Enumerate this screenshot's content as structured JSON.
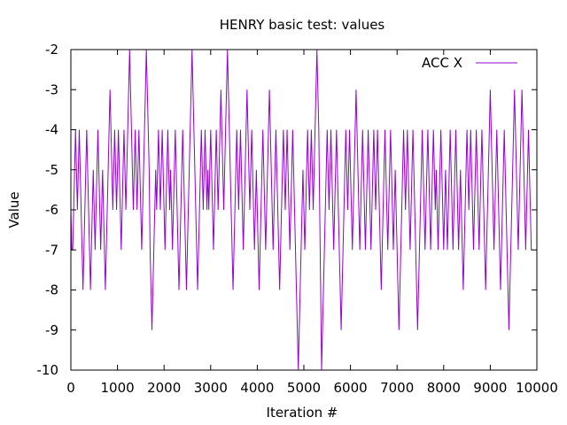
{
  "chart_data": {
    "type": "line",
    "title": "HENRY basic test: values",
    "xlabel": "Iteration #",
    "ylabel": "Value",
    "xlim": [
      0,
      10000
    ],
    "ylim": [
      -10,
      -2
    ],
    "xticks": [
      0,
      1000,
      2000,
      3000,
      4000,
      5000,
      6000,
      7000,
      8000,
      9000,
      10000
    ],
    "yticks": [
      -10,
      -9,
      -8,
      -7,
      -6,
      -5,
      -4,
      -3,
      -2
    ],
    "grid": false,
    "legend_position": "top-right",
    "series": [
      {
        "name": "ACC X",
        "color": "#9400d3",
        "x_start": 0,
        "x_step": 20,
        "values": [
          -6,
          -7,
          -7,
          -6,
          -5,
          -4,
          -5,
          -6,
          -5,
          -4,
          -5,
          -6,
          -7,
          -8,
          -7,
          -6,
          -5,
          -4,
          -5,
          -6,
          -7,
          -8,
          -7,
          -6,
          -5,
          -6,
          -7,
          -6,
          -5,
          -4,
          -5,
          -6,
          -7,
          -6,
          -5,
          -6,
          -7,
          -8,
          -7,
          -6,
          -5,
          -4,
          -3,
          -4,
          -5,
          -6,
          -5,
          -4,
          -5,
          -6,
          -5,
          -4,
          -5,
          -6,
          -7,
          -6,
          -5,
          -4,
          -5,
          -6,
          -5,
          -4,
          -3,
          -2,
          -3,
          -4,
          -5,
          -6,
          -5,
          -4,
          -5,
          -6,
          -5,
          -4,
          -5,
          -6,
          -7,
          -6,
          -5,
          -4,
          -3,
          -2,
          -3,
          -4,
          -5,
          -7,
          -8,
          -9,
          -8,
          -7,
          -6,
          -5,
          -6,
          -5,
          -4,
          -5,
          -6,
          -5,
          -4,
          -5,
          -6,
          -7,
          -6,
          -5,
          -4,
          -5,
          -6,
          -5,
          -6,
          -7,
          -6,
          -5,
          -4,
          -5,
          -6,
          -7,
          -8,
          -7,
          -6,
          -5,
          -4,
          -5,
          -6,
          -7,
          -8,
          -7,
          -6,
          -5,
          -4,
          -3,
          -2,
          -3,
          -4,
          -5,
          -6,
          -7,
          -8,
          -7,
          -6,
          -5,
          -4,
          -5,
          -6,
          -5,
          -4,
          -5,
          -6,
          -5,
          -6,
          -5,
          -4,
          -5,
          -6,
          -7,
          -6,
          -5,
          -4,
          -5,
          -6,
          -5,
          -4,
          -3,
          -4,
          -5,
          -6,
          -5,
          -4,
          -3,
          -2,
          -3,
          -4,
          -5,
          -6,
          -7,
          -8,
          -7,
          -6,
          -5,
          -4,
          -5,
          -6,
          -5,
          -4,
          -5,
          -6,
          -7,
          -6,
          -5,
          -4,
          -3,
          -4,
          -5,
          -6,
          -5,
          -4,
          -5,
          -6,
          -7,
          -6,
          -5,
          -6,
          -7,
          -8,
          -7,
          -6,
          -5,
          -4,
          -5,
          -6,
          -7,
          -6,
          -5,
          -4,
          -3,
          -4,
          -5,
          -6,
          -7,
          -6,
          -5,
          -4,
          -5,
          -6,
          -7,
          -8,
          -7,
          -6,
          -5,
          -4,
          -5,
          -6,
          -5,
          -4,
          -5,
          -6,
          -7,
          -6,
          -5,
          -4,
          -5,
          -6,
          -7,
          -8,
          -9,
          -10,
          -9,
          -8,
          -7,
          -6,
          -5,
          -6,
          -7,
          -6,
          -5,
          -4,
          -5,
          -6,
          -5,
          -4,
          -5,
          -6,
          -5,
          -4,
          -3,
          -2,
          -3,
          -4,
          -6,
          -8,
          -10,
          -9,
          -8,
          -7,
          -6,
          -5,
          -4,
          -5,
          -6,
          -5,
          -4,
          -5,
          -6,
          -7,
          -6,
          -5,
          -4,
          -5,
          -6,
          -7,
          -8,
          -9,
          -8,
          -7,
          -6,
          -5,
          -4,
          -5,
          -6,
          -5,
          -4,
          -5,
          -6,
          -7,
          -6,
          -5,
          -4,
          -3,
          -4,
          -5,
          -6,
          -7,
          -6,
          -5,
          -4,
          -5,
          -6,
          -7,
          -6,
          -5,
          -4,
          -5,
          -6,
          -7,
          -6,
          -5,
          -4,
          -5,
          -6,
          -5,
          -4,
          -5,
          -6,
          -7,
          -8,
          -7,
          -6,
          -5,
          -4,
          -5,
          -6,
          -7,
          -6,
          -5,
          -4,
          -5,
          -6,
          -7,
          -6,
          -5,
          -6,
          -7,
          -8,
          -9,
          -8,
          -7,
          -6,
          -5,
          -4,
          -5,
          -6,
          -5,
          -4,
          -5,
          -6,
          -7,
          -6,
          -5,
          -4,
          -5,
          -6,
          -7,
          -8,
          -9,
          -8,
          -7,
          -6,
          -5,
          -4,
          -5,
          -6,
          -7,
          -6,
          -5,
          -4,
          -5,
          -6,
          -7,
          -6,
          -5,
          -4,
          -5,
          -6,
          -5,
          -6,
          -7,
          -6,
          -5,
          -4,
          -5,
          -6,
          -7,
          -6,
          -5,
          -6,
          -7,
          -6,
          -5,
          -4,
          -5,
          -6,
          -7,
          -6,
          -5,
          -4,
          -5,
          -6,
          -7,
          -6,
          -5,
          -6,
          -7,
          -8,
          -7,
          -6,
          -5,
          -4,
          -5,
          -6,
          -5,
          -4,
          -5,
          -6,
          -7,
          -6,
          -5,
          -4,
          -5,
          -6,
          -7,
          -6,
          -5,
          -4,
          -5,
          -6,
          -7,
          -8,
          -7,
          -6,
          -5,
          -4,
          -3,
          -4,
          -5,
          -6,
          -7,
          -6,
          -5,
          -4,
          -5,
          -6,
          -7,
          -8,
          -7,
          -6,
          -5,
          -4,
          -5,
          -6,
          -7,
          -8,
          -9,
          -8,
          -7,
          -6,
          -5,
          -4,
          -3,
          -4,
          -5,
          -6,
          -7,
          -6,
          -5,
          -4,
          -3,
          -4,
          -5,
          -6,
          -7,
          -6,
          -5,
          -4,
          -5,
          -6,
          -7,
          -7
        ]
      }
    ]
  }
}
